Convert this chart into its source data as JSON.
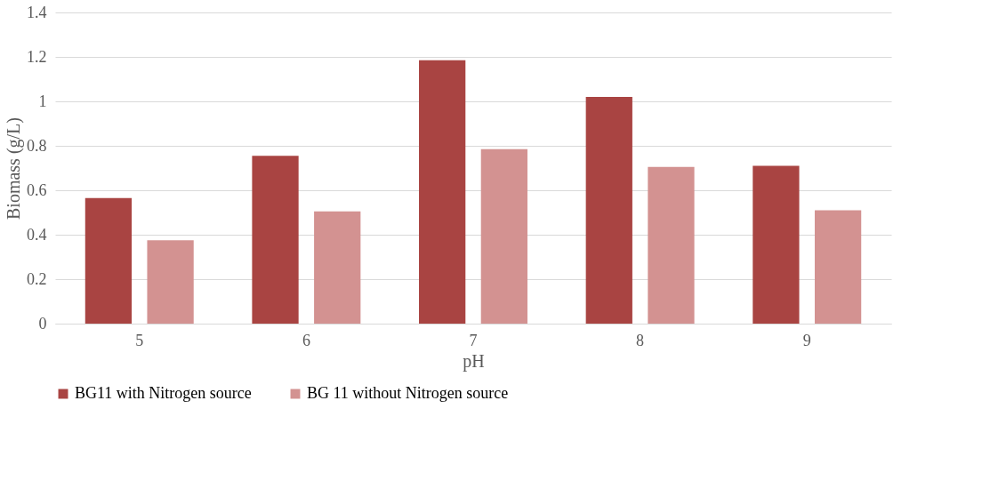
{
  "chart_data": {
    "type": "bar",
    "xlabel": "pH",
    "ylabel": "Biomass (g/L)",
    "categories": [
      "5",
      "6",
      "7",
      "8",
      "9"
    ],
    "series": [
      {
        "name": "BG11 with Nitrogen source",
        "color": "#a94442",
        "values": [
          0.565,
          0.755,
          1.185,
          1.02,
          0.71
        ]
      },
      {
        "name": "BG 11 without Nitrogen source",
        "color": "#d39291",
        "values": [
          0.375,
          0.505,
          0.785,
          0.705,
          0.51
        ]
      }
    ],
    "ylim": [
      0,
      1.4
    ],
    "yticks": [
      0,
      0.2,
      0.4,
      0.6,
      0.8,
      1,
      1.2,
      1.4
    ],
    "grid": "y",
    "legend": "bottom"
  }
}
